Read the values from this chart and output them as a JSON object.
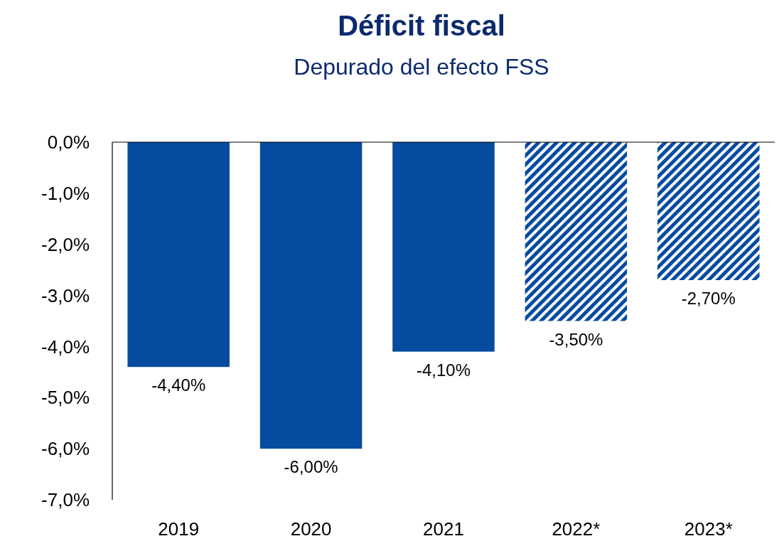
{
  "chart_data": {
    "type": "bar",
    "title": "Déficit fiscal",
    "subtitle": "Depurado del efecto FSS",
    "categories": [
      "2019",
      "2020",
      "2021",
      "2022*",
      "2023*"
    ],
    "stacked": true,
    "series": [
      {
        "color": "#054ba0",
        "values": [
          -4.4,
          -6.0,
          -4.1,
          null,
          null
        ],
        "value_labels": [
          "-4,40%",
          "-6,00%",
          "-4,10%",
          null,
          null
        ]
      },
      {
        "color": "#054ba0",
        "values": [
          null,
          null,
          null,
          -3.5,
          -2.7
        ],
        "value_labels": [
          null,
          null,
          null,
          "-3,50%",
          "-2,70%"
        ]
      }
    ],
    "ylim": [
      -7,
      0
    ],
    "yticks": [
      {
        "value": 0,
        "label": "0,0%"
      },
      {
        "value": -1,
        "label": "-1,0%"
      },
      {
        "value": -2,
        "label": "-2,0%"
      },
      {
        "value": -3,
        "label": "-3,0%"
      },
      {
        "value": -4,
        "label": "-4,0%"
      },
      {
        "value": -5,
        "label": "-5,0%"
      },
      {
        "value": -6,
        "label": "-6,0%"
      },
      {
        "value": -7,
        "label": "-7,0%"
      }
    ],
    "grid": false
  }
}
